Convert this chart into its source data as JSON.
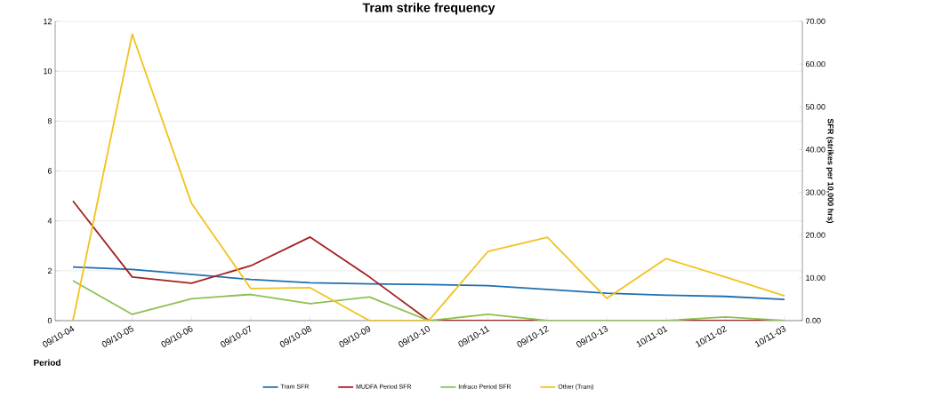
{
  "chart_data": {
    "type": "line",
    "title": "Tram strike frequency",
    "xlabel": "Period",
    "y2label": "SFR (strikes per 10,000 hrs)",
    "categories": [
      "09/10-04",
      "09/10-05",
      "09/10-06",
      "09/10-07",
      "09/10-08",
      "09/10-09",
      "09/10-10",
      "09/10-11",
      "09/10-12",
      "09/10-13",
      "10/11-01",
      "10/11-02",
      "10/11-03"
    ],
    "series": [
      {
        "name": "Tram SFR",
        "color": "#1f6fb0",
        "values": [
          2.15,
          2.05,
          1.85,
          1.65,
          1.52,
          1.47,
          1.45,
          1.4,
          1.25,
          1.1,
          1.02,
          0.97,
          0.85
        ]
      },
      {
        "name": "MUDFA Period SFR",
        "color": "#a31f1f",
        "values": [
          4.8,
          1.75,
          1.5,
          2.2,
          3.35,
          1.75,
          0,
          0,
          0,
          0,
          0,
          0,
          0
        ]
      },
      {
        "name": "Infraco Period SFR",
        "color": "#8cc152",
        "values": [
          1.6,
          0.25,
          0.88,
          1.05,
          0.68,
          0.95,
          0,
          0.25,
          0,
          0,
          0,
          0.15,
          0
        ]
      },
      {
        "name": "Other (Tram)",
        "color": "#f2c21b",
        "axis": "y2",
        "values": [
          0,
          67,
          27.4,
          7.5,
          7.7,
          0,
          0,
          16.2,
          19.5,
          5.2,
          14.5,
          10.2,
          5.8
        ]
      }
    ],
    "ylim": [
      0,
      12
    ],
    "yticks": [
      0,
      2,
      4,
      6,
      8,
      10,
      12
    ],
    "y2lim": [
      0,
      70
    ],
    "y2ticks": [
      {
        "value": 0,
        "label": "0.00"
      },
      {
        "value": 10,
        "label": "10.00"
      },
      {
        "value": 20,
        "label": "20.00"
      },
      {
        "value": 30,
        "label": "30.00"
      },
      {
        "value": 40,
        "label": "40.00"
      },
      {
        "value": 50,
        "label": "50.00"
      },
      {
        "value": 60,
        "label": "60.00"
      },
      {
        "value": 70,
        "label": "70.00"
      }
    ],
    "grid": "y",
    "legend": "bottom"
  }
}
